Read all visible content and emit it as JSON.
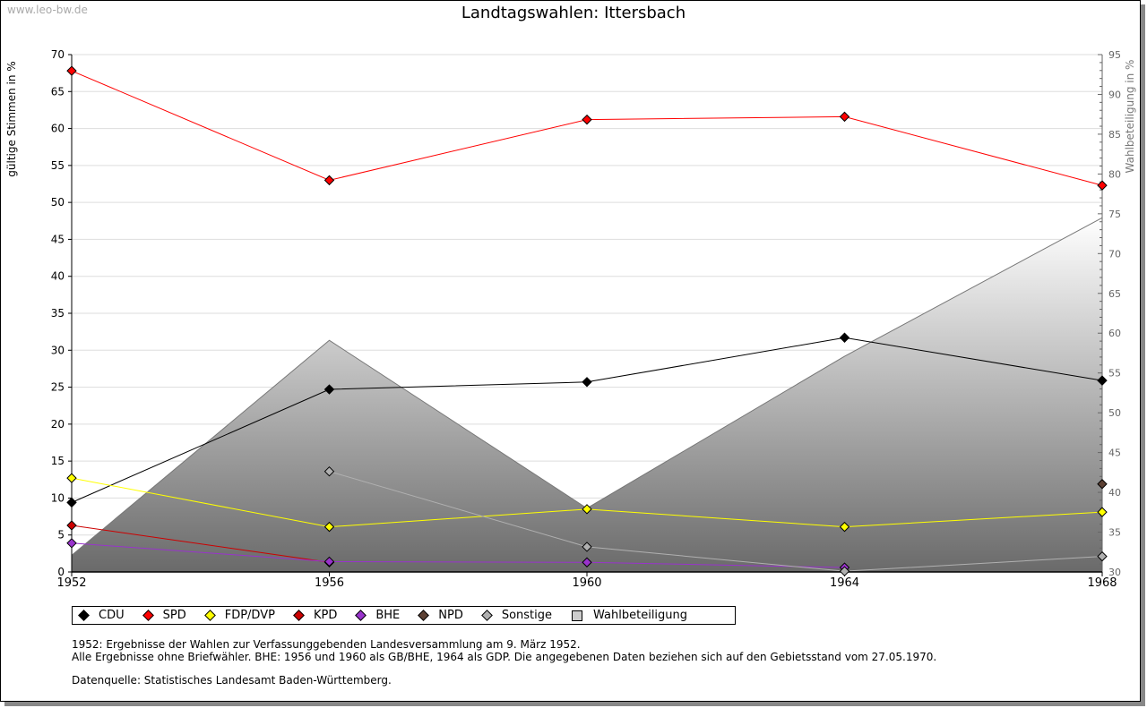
{
  "watermark": "www.leo-bw.de",
  "notes": [
    "1952: Ergebnisse der Wahlen zur Verfassunggebenden Landesversammlung am 9. März 1952.",
    "Alle Ergebnisse ohne Briefwähler. BHE: 1956 und 1960 als GB/BHE, 1964 als GDP. Die angegebenen Daten beziehen sich auf den Gebietsstand vom 27.05.1970.",
    "Datenquelle: Statistisches Landesamt Baden-Württemberg."
  ],
  "chart_data": {
    "type": "line",
    "title": "Landtagswahlen: Ittersbach",
    "ylabel": "gültige Stimmen in %",
    "y2label": "Wahlbeteiligung in %",
    "x": [
      1952,
      1956,
      1960,
      1964,
      1968
    ],
    "ylim": [
      0,
      70
    ],
    "y2lim": [
      30,
      95
    ],
    "yticks": [
      0,
      5,
      10,
      15,
      20,
      25,
      30,
      35,
      40,
      45,
      50,
      55,
      60,
      65,
      70
    ],
    "y2ticks": [
      30,
      35,
      40,
      45,
      50,
      55,
      60,
      65,
      70,
      75,
      80,
      85,
      90,
      95
    ],
    "grid": true,
    "legend_position": "bottom",
    "series": [
      {
        "name": "CDU",
        "color": "#000000",
        "values": [
          9.4,
          24.7,
          25.7,
          31.7,
          25.9
        ]
      },
      {
        "name": "SPD",
        "color": "#ff0000",
        "values": [
          67.8,
          53.0,
          61.2,
          61.6,
          52.3
        ]
      },
      {
        "name": "FDP/DVP",
        "color": "#ffff00",
        "values": [
          12.7,
          6.1,
          8.5,
          6.1,
          8.1
        ]
      },
      {
        "name": "KPD",
        "color": "#cc0000",
        "values": [
          6.3,
          1.3,
          null,
          null,
          null
        ]
      },
      {
        "name": "BHE",
        "color": "#9933cc",
        "values": [
          3.9,
          1.4,
          1.3,
          0.6,
          null
        ]
      },
      {
        "name": "NPD",
        "color": "#5c4033",
        "values": [
          null,
          null,
          null,
          null,
          11.9
        ]
      },
      {
        "name": "Sonstige",
        "color": "#b0b0b0",
        "values": [
          null,
          13.6,
          3.4,
          0.1,
          2.1
        ]
      }
    ],
    "area": {
      "name": "Wahlbeteiligung",
      "axis": "right",
      "values": [
        32.1,
        59.1,
        38.0,
        57.1,
        74.5
      ]
    }
  }
}
